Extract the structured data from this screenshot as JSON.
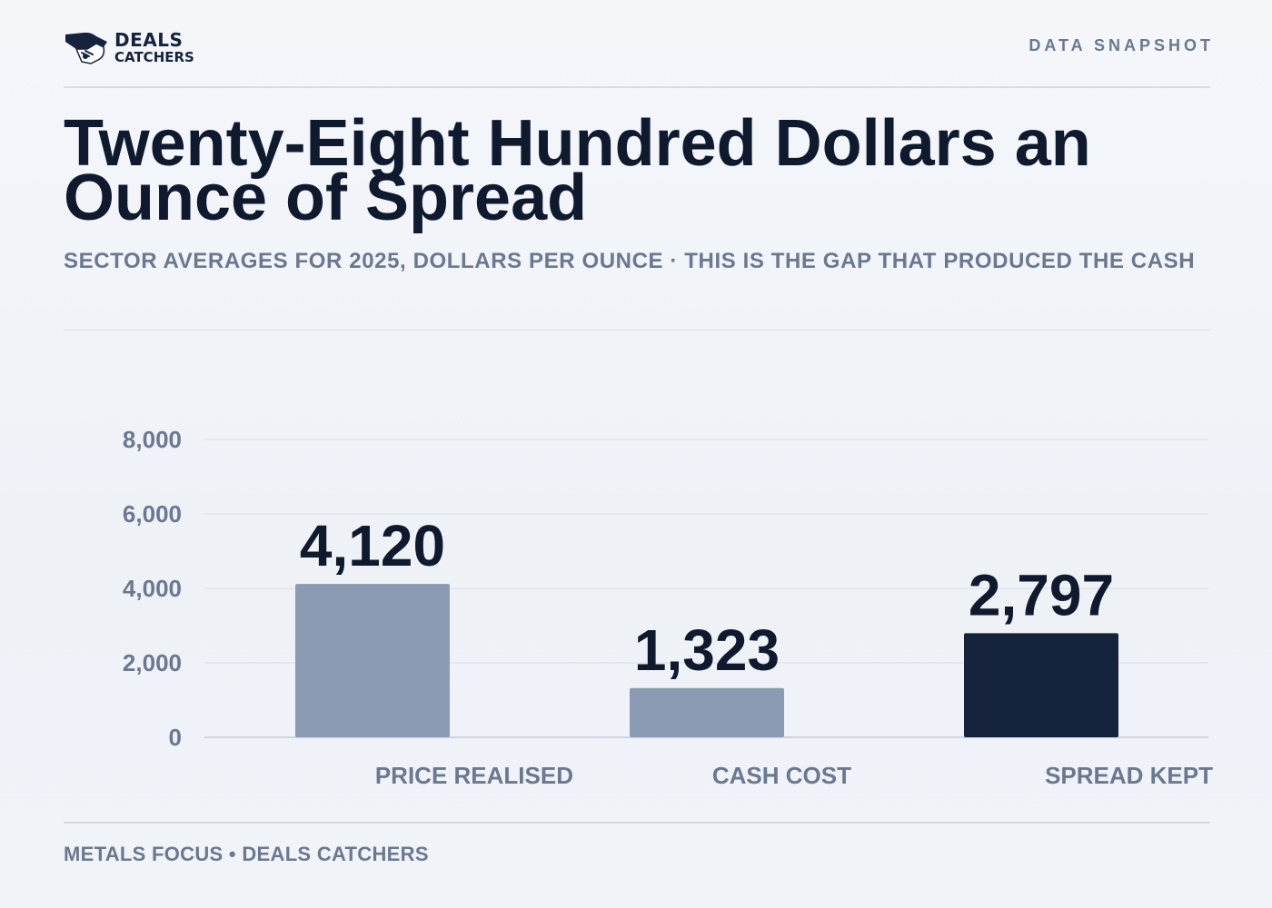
{
  "brand": {
    "line1": "DEALS",
    "line2": "CATCHERS"
  },
  "header": {
    "tag": "DATA SNAPSHOT"
  },
  "footer": {
    "source": "METALS FOCUS • DEALS CATCHERS"
  },
  "colors": {
    "bar_muted": "#8a9bb3",
    "bar_accent": "#15233d",
    "grid": "#dfe4eb",
    "axis_text": "#6a7890",
    "value_text": "#0f1a2e"
  },
  "chart_data": {
    "type": "bar",
    "title": "Twenty-Eight Hundred Dollars an Ounce of Spread",
    "subtitle": "SECTOR AVERAGES FOR 2025, DOLLARS PER OUNCE · THIS IS THE GAP THAT PRODUCED THE CASH",
    "categories": [
      "PRICE REALISED",
      "CASH COST",
      "SPREAD KEPT"
    ],
    "values": [
      4120,
      1323,
      2797
    ],
    "value_labels": [
      "4,120",
      "1,323",
      "2,797"
    ],
    "highlight": [
      false,
      false,
      true
    ],
    "ylim": [
      0,
      8000
    ],
    "yticks": [
      0,
      2000,
      4000,
      6000,
      8000
    ],
    "ytick_labels": [
      "0",
      "2,000",
      "4,000",
      "6,000",
      "8,000"
    ],
    "grid": true,
    "legend": "none"
  }
}
